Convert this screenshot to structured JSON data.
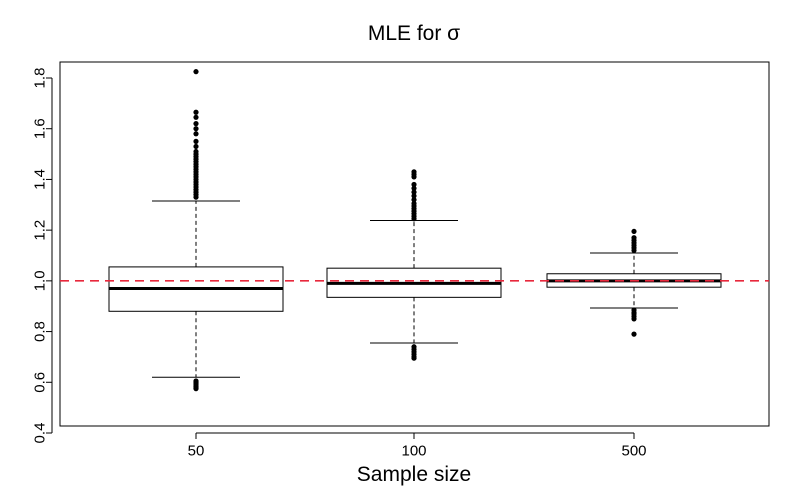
{
  "chart_data": {
    "type": "boxplot",
    "title": "MLE for σ",
    "xlabel": "Sample size",
    "ylabel": "",
    "ylim": [
      0.4,
      1.85
    ],
    "yticks": [
      "0.4",
      "0.6",
      "0.8",
      "1.0",
      "1.2",
      "1.4",
      "1.6",
      "1.8"
    ],
    "categories": [
      "50",
      "100",
      "500"
    ],
    "reference_line": {
      "y": 1.0,
      "color": "#e8283c",
      "style": "dashed"
    },
    "grid": false,
    "boxes": [
      {
        "category": "50",
        "whisker_low": 0.62,
        "q1": 0.88,
        "median": 0.97,
        "q3": 1.055,
        "whisker_high": 1.315,
        "outliers": [
          0.575,
          0.58,
          0.585,
          0.59,
          0.595,
          0.6,
          0.605,
          1.33,
          1.34,
          1.35,
          1.36,
          1.37,
          1.38,
          1.39,
          1.4,
          1.41,
          1.42,
          1.43,
          1.44,
          1.45,
          1.46,
          1.47,
          1.48,
          1.49,
          1.5,
          1.51,
          1.53,
          1.55,
          1.58,
          1.6,
          1.62,
          1.645,
          1.665,
          1.825
        ]
      },
      {
        "category": "100",
        "whisker_low": 0.755,
        "q1": 0.935,
        "median": 0.99,
        "q3": 1.05,
        "whisker_high": 1.238,
        "outliers": [
          0.695,
          0.7,
          0.71,
          0.72,
          0.73,
          0.74,
          1.245,
          1.255,
          1.265,
          1.275,
          1.285,
          1.295,
          1.305,
          1.32,
          1.335,
          1.35,
          1.365,
          1.38,
          1.41,
          1.42,
          1.43
        ]
      },
      {
        "category": "500",
        "whisker_low": 0.893,
        "q1": 0.975,
        "median": 1.0,
        "q3": 1.028,
        "whisker_high": 1.11,
        "outliers": [
          0.79,
          0.85,
          0.86,
          0.87,
          0.875,
          0.885,
          1.12,
          1.13,
          1.14,
          1.15,
          1.16,
          1.17,
          1.195
        ]
      }
    ],
    "colors": {
      "box": "#000000",
      "reference": "#e8283c"
    }
  }
}
